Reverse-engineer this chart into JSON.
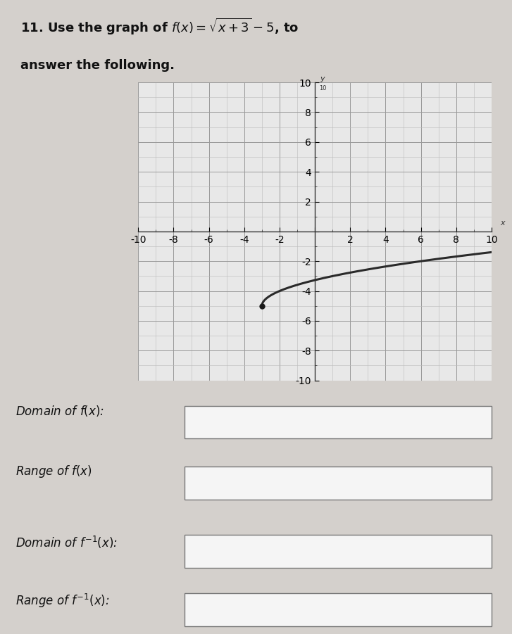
{
  "page_bg": "#d4d0cc",
  "graph_bg": "#e8e8e8",
  "graph_grid_minor_color": "#bbbbbb",
  "graph_grid_major_color": "#999999",
  "curve_color": "#2a2a2a",
  "curve_linewidth": 2.2,
  "dot_color": "#1a1a1a",
  "xmin": -10,
  "xmax": 10,
  "ymin": -10,
  "ymax": 10,
  "axis_label_x": "x",
  "axis_label_y": "y",
  "box_face": "#f0f0f0",
  "box_edge": "#666666",
  "label_fontsize": 12,
  "title_fontsize": 13,
  "tick_fontsize": 7,
  "lower_section_bg": "#e8e4e0"
}
